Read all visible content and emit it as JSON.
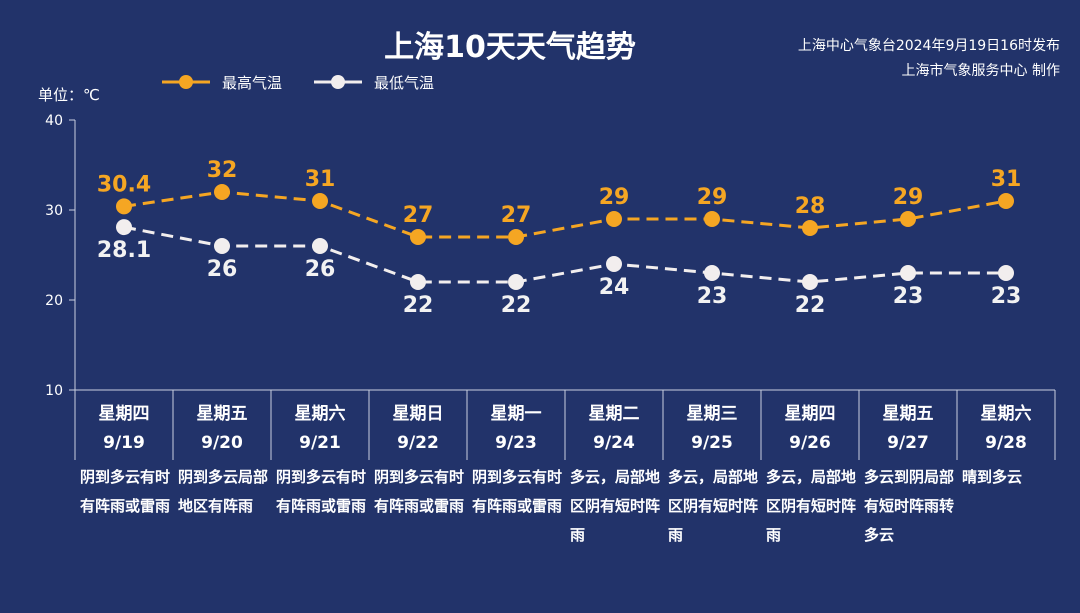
{
  "title": "上海10天天气趋势",
  "source_line1": "上海中心气象台2024年9月19日16时发布",
  "source_line2": "上海市气象服务中心 制作",
  "unit_label": "单位：℃",
  "colors": {
    "background": "#22336a",
    "high": "#f5a623",
    "low": "#f2eeee",
    "axis": "#c9cfe0"
  },
  "chart_data": {
    "type": "line",
    "title": "上海10天天气趋势",
    "ylabel": "单位：℃",
    "ylim": [
      10,
      40
    ],
    "yticks": [
      10,
      20,
      30,
      40
    ],
    "legend_position": "top-left",
    "grid": false,
    "categories": [
      "9/19",
      "9/20",
      "9/21",
      "9/22",
      "9/23",
      "9/24",
      "9/25",
      "9/26",
      "9/27",
      "9/28"
    ],
    "series": [
      {
        "name": "最高气温",
        "color": "#f5a623",
        "values": [
          30.4,
          32,
          31,
          27,
          27,
          29,
          29,
          28,
          29,
          31
        ]
      },
      {
        "name": "最低气温",
        "color": "#f2eeee",
        "values": [
          28.1,
          26,
          26,
          22,
          22,
          24,
          23,
          22,
          23,
          23
        ]
      }
    ]
  },
  "days": [
    {
      "weekday": "星期四",
      "date": "9/19",
      "desc": "阴到多云有时有阵雨或雷雨"
    },
    {
      "weekday": "星期五",
      "date": "9/20",
      "desc": "阴到多云局部地区有阵雨"
    },
    {
      "weekday": "星期六",
      "date": "9/21",
      "desc": "阴到多云有时有阵雨或雷雨"
    },
    {
      "weekday": "星期日",
      "date": "9/22",
      "desc": "阴到多云有时有阵雨或雷雨"
    },
    {
      "weekday": "星期一",
      "date": "9/23",
      "desc": "阴到多云有时有阵雨或雷雨"
    },
    {
      "weekday": "星期二",
      "date": "9/24",
      "desc": "多云，局部地区阴有短时阵雨"
    },
    {
      "weekday": "星期三",
      "date": "9/25",
      "desc": "多云，局部地区阴有短时阵雨"
    },
    {
      "weekday": "星期四",
      "date": "9/26",
      "desc": "多云，局部地区阴有短时阵雨"
    },
    {
      "weekday": "星期五",
      "date": "9/27",
      "desc": "多云到阴局部有短时阵雨转多云"
    },
    {
      "weekday": "星期六",
      "date": "9/28",
      "desc": "晴到多云"
    }
  ]
}
